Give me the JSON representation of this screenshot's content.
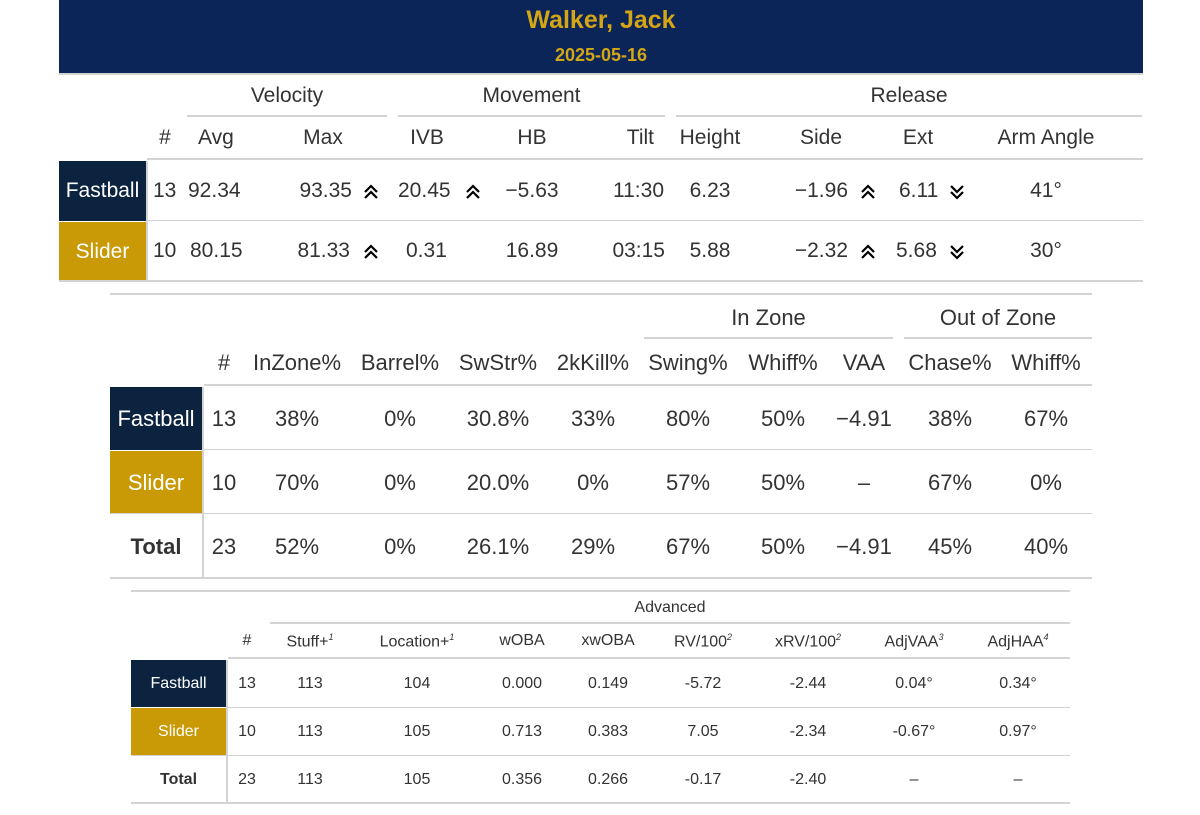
{
  "header": {
    "name": "Walker, Jack",
    "date": "2025-05-16"
  },
  "table1": {
    "groups": {
      "velocity": "Velocity",
      "movement": "Movement",
      "release": "Release"
    },
    "columns": {
      "count": "#",
      "avg": "Avg",
      "max": "Max",
      "ivb": "IVB",
      "hb": "HB",
      "tilt": "Tilt",
      "height": "Height",
      "side": "Side",
      "ext": "Ext",
      "arm_angle": "Arm Angle"
    },
    "rows": [
      {
        "pitch": "Fastball",
        "count": "13",
        "avg": "92.34",
        "max": "93.35",
        "max_arrow": "double-up",
        "ivb": "20.45",
        "ivb_arrow": "double-up",
        "hb": "−5.63",
        "tilt": "11:30",
        "height": "6.23",
        "side": "−1.96",
        "side_arrow": "double-up",
        "ext": "6.11",
        "ext_arrow": "double-down",
        "arm_angle": "41°"
      },
      {
        "pitch": "Slider",
        "count": "10",
        "avg": "80.15",
        "max": "81.33",
        "max_arrow": "double-up",
        "ivb": "0.31",
        "hb": "16.89",
        "tilt": "03:15",
        "height": "5.88",
        "side": "−2.32",
        "side_arrow": "double-up",
        "ext": "5.68",
        "ext_arrow": "double-down",
        "arm_angle": "30°"
      }
    ]
  },
  "table2": {
    "groups": {
      "in_zone": "In Zone",
      "out_zone": "Out of Zone"
    },
    "columns": {
      "count": "#",
      "inzone": "InZone%",
      "barrel": "Barrel%",
      "swstr": "SwStr%",
      "kill2k": "2kKill%",
      "swing": "Swing%",
      "whiff_in": "Whiff%",
      "vaa": "VAA",
      "chase": "Chase%",
      "whiff_out": "Whiff%"
    },
    "rows": [
      {
        "pitch": "Fastball",
        "count": "13",
        "inzone": "38%",
        "barrel": "0%",
        "swstr": "30.8%",
        "kill2k": "33%",
        "swing": "80%",
        "whiff_in": "50%",
        "vaa": "−4.91",
        "chase": "38%",
        "whiff_out": "67%"
      },
      {
        "pitch": "Slider",
        "count": "10",
        "inzone": "70%",
        "barrel": "0%",
        "swstr": "20.0%",
        "kill2k": "0%",
        "swing": "57%",
        "whiff_in": "50%",
        "vaa": "–",
        "chase": "67%",
        "whiff_out": "0%"
      },
      {
        "pitch": "Total",
        "count": "23",
        "inzone": "52%",
        "barrel": "0%",
        "swstr": "26.1%",
        "kill2k": "29%",
        "swing": "67%",
        "whiff_in": "50%",
        "vaa": "−4.91",
        "chase": "45%",
        "whiff_out": "40%"
      }
    ]
  },
  "table3": {
    "group": "Advanced",
    "columns": {
      "count": "#",
      "stuff": "Stuff+",
      "stuff_fn": "1",
      "location": "Location+",
      "location_fn": "1",
      "woba": "wOBA",
      "xwoba": "xwOBA",
      "rv": "RV/100",
      "rv_fn": "2",
      "xrv": "xRV/100",
      "xrv_fn": "2",
      "adjvaa": "AdjVAA",
      "adjvaa_fn": "3",
      "adjhaa": "AdjHAA",
      "adjhaa_fn": "4"
    },
    "rows": [
      {
        "pitch": "Fastball",
        "count": "13",
        "stuff": "113",
        "location": "104",
        "woba": "0.000",
        "xwoba": "0.149",
        "rv": "-5.72",
        "xrv": "-2.44",
        "adjvaa": "0.04°",
        "adjhaa": "0.34°"
      },
      {
        "pitch": "Slider",
        "count": "10",
        "stuff": "113",
        "location": "105",
        "woba": "0.713",
        "xwoba": "0.383",
        "rv": "7.05",
        "xrv": "-2.34",
        "adjvaa": "-0.67°",
        "adjhaa": "0.97°"
      },
      {
        "pitch": "Total",
        "count": "23",
        "stuff": "113",
        "location": "105",
        "woba": "0.356",
        "xwoba": "0.266",
        "rv": "-0.17",
        "xrv": "-2.40",
        "adjvaa": "–",
        "adjhaa": "–"
      }
    ]
  },
  "colors": {
    "header_bg": "#0b2559",
    "header_text": "#d4a514",
    "fastball": "#0c2340",
    "slider": "#c99a06",
    "arrow": "#000000"
  },
  "icons": {
    "up": "double-chevron-up-icon",
    "down": "double-chevron-down-icon"
  }
}
